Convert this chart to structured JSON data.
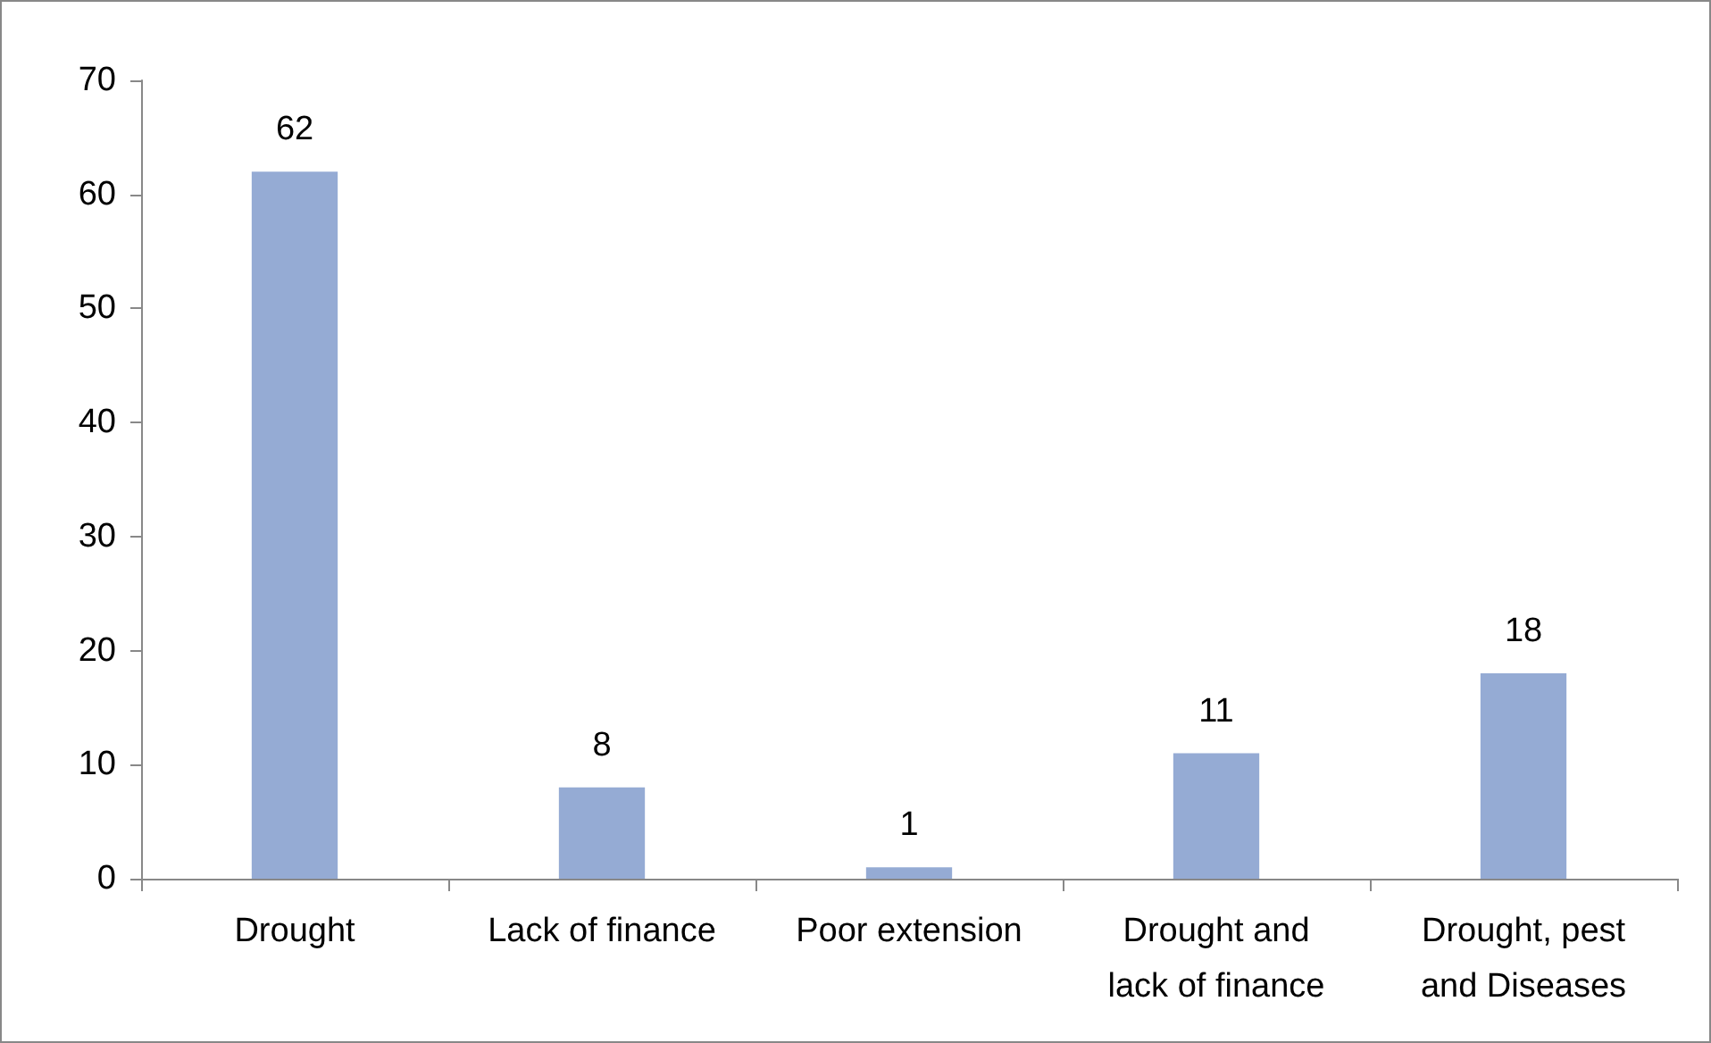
{
  "chart_data": {
    "type": "bar",
    "categories": [
      "Drought",
      "Lack of finance",
      "Poor extension",
      "Drought and\nlack of finance",
      "Drought, pest\nand Diseases"
    ],
    "values": [
      62,
      8,
      1,
      11,
      18
    ],
    "color": "#95abd4",
    "ylim": [
      0,
      70
    ],
    "yticks": [
      0,
      10,
      20,
      30,
      40,
      50,
      60,
      70
    ],
    "grid": false,
    "data_labels": true
  }
}
